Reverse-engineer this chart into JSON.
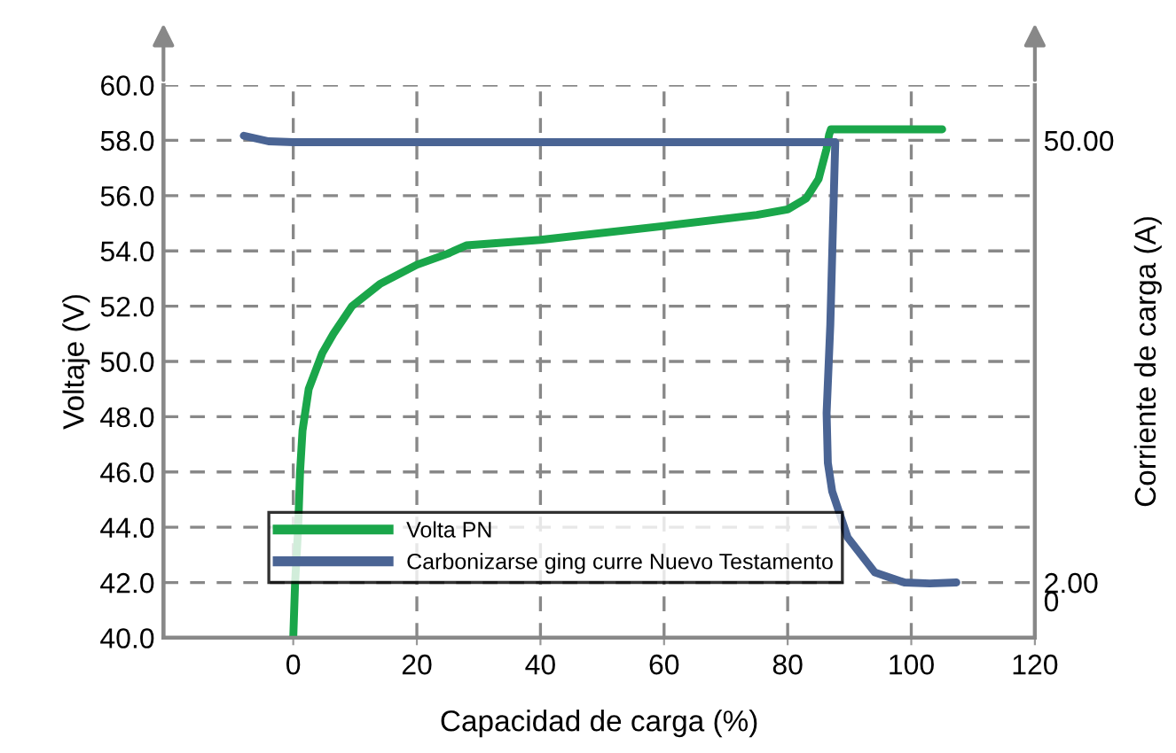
{
  "chart_data": {
    "type": "line",
    "xlabel": "Capacidad de carga (%)",
    "ylabel": "Voltaje (V)",
    "y2label": "Corriente de carga (A)",
    "xlim": [
      -21,
      120
    ],
    "xticks": [
      0,
      20,
      40,
      60,
      80,
      100,
      120
    ],
    "ylim": [
      40,
      60
    ],
    "yticks": [
      {
        "value": 40,
        "label": "40.0"
      },
      {
        "value": 42,
        "label": "42.0"
      },
      {
        "value": 44,
        "label": "44.0"
      },
      {
        "value": 46,
        "label": "46.0"
      },
      {
        "value": 48,
        "label": "48.0"
      },
      {
        "value": 50,
        "label": "50.0"
      },
      {
        "value": 52,
        "label": "52.0"
      },
      {
        "value": 54,
        "label": "54.0"
      },
      {
        "value": 56,
        "label": "56.0"
      },
      {
        "value": 58,
        "label": "58.0"
      },
      {
        "value": 60,
        "label": "60.0"
      }
    ],
    "y2lim": [
      -4,
      56
    ],
    "y2ticks": [
      0,
      {
        "value": 2,
        "label": "2.00"
      },
      {
        "value": 50,
        "label": "50.00"
      }
    ],
    "grid": true,
    "legend": "bottom",
    "line_style": "solid",
    "series": [
      {
        "name": "Volta PN",
        "color": "#1aa64a",
        "x": [
          0,
          0.3,
          0.8,
          1.1,
          1.5,
          2.5,
          4.7,
          6.5,
          9.5,
          14,
          20,
          25,
          28,
          40,
          60,
          75,
          80,
          83,
          85,
          86.3,
          86.7,
          87,
          105
        ],
        "values": [
          40,
          42,
          44,
          46,
          47.5,
          49,
          50.3,
          51,
          52,
          52.8,
          53.5,
          53.9,
          54.2,
          54.4,
          54.9,
          55.3,
          55.5,
          55.9,
          56.6,
          57.7,
          58.2,
          58.4,
          58.4
        ]
      },
      {
        "name": "Carbonizarse ging curre Nuevo Testamento",
        "color": "#4a6494",
        "axis": "y2",
        "x": [
          -8,
          -4,
          0,
          40,
          80,
          87.7,
          87.3,
          86.9,
          86.3,
          86.5,
          87.2,
          89.7,
          94.1,
          98.9,
          103,
          107.3
        ],
        "values": [
          50.5,
          49.9,
          49.8,
          49.8,
          49.8,
          49.8,
          40,
          30,
          20.4,
          15,
          11.9,
          6.9,
          3.1,
          2,
          1.9,
          2
        ]
      }
    ]
  }
}
